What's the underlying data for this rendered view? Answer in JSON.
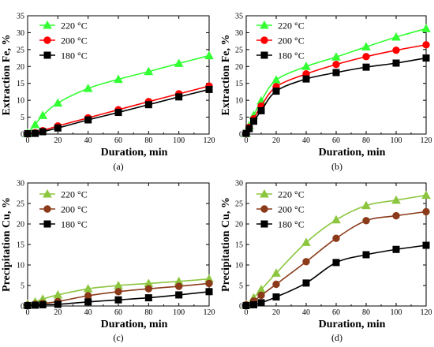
{
  "chart_data": [
    {
      "type": "line",
      "panel_label": "(a)",
      "xlabel": "Duration,  min",
      "ylabel": "Extraction Fe,  %",
      "xlim": [
        0,
        120
      ],
      "ylim": [
        0,
        35
      ],
      "xticks": [
        0,
        20,
        40,
        60,
        80,
        100,
        120
      ],
      "yticks": [
        0,
        5,
        10,
        15,
        20,
        25,
        30,
        35
      ],
      "legend_position": "top-left",
      "series": [
        {
          "name": "220 °C",
          "color": "#33ff33",
          "marker": "triangle",
          "x": [
            0,
            5,
            10,
            20,
            40,
            60,
            80,
            100,
            120
          ],
          "y": [
            0.3,
            2.8,
            5.5,
            9.2,
            13.5,
            16.2,
            18.5,
            20.9,
            23.2
          ]
        },
        {
          "name": "200 °C",
          "color": "#ff0000",
          "marker": "circle",
          "x": [
            0,
            5,
            10,
            20,
            40,
            60,
            80,
            100,
            120
          ],
          "y": [
            0.1,
            0.4,
            1.0,
            2.4,
            4.8,
            7.2,
            9.6,
            11.9,
            14.2
          ]
        },
        {
          "name": "180 °C",
          "color": "#000000",
          "marker": "square",
          "x": [
            0,
            5,
            10,
            20,
            40,
            60,
            80,
            100,
            120
          ],
          "y": [
            0.1,
            0.2,
            0.7,
            1.8,
            4.2,
            6.4,
            8.7,
            11.0,
            13.2
          ]
        }
      ]
    },
    {
      "type": "line",
      "panel_label": "(b)",
      "xlabel": "Duration,  min",
      "ylabel": "Extraction Fe,  %",
      "xlim": [
        0,
        120
      ],
      "ylim": [
        0,
        35
      ],
      "xticks": [
        0,
        20,
        40,
        60,
        80,
        100,
        120
      ],
      "yticks": [
        0,
        5,
        10,
        15,
        20,
        25,
        30,
        35
      ],
      "legend_position": "top-right",
      "series": [
        {
          "name": "220 °C",
          "color": "#33ff33",
          "marker": "triangle",
          "x": [
            0,
            2,
            5,
            10,
            20,
            40,
            60,
            80,
            100,
            120
          ],
          "y": [
            0.2,
            2.5,
            5.5,
            9.8,
            16.0,
            20.0,
            22.8,
            25.8,
            28.7,
            31.2
          ]
        },
        {
          "name": "200 °C",
          "color": "#ff0000",
          "marker": "circle",
          "x": [
            0,
            2,
            5,
            10,
            20,
            40,
            60,
            80,
            100,
            120
          ],
          "y": [
            0.2,
            2.0,
            4.5,
            8.3,
            14.0,
            17.8,
            20.6,
            22.9,
            24.8,
            26.4
          ]
        },
        {
          "name": "180 °C",
          "color": "#000000",
          "marker": "square",
          "x": [
            0,
            2,
            5,
            10,
            20,
            40,
            60,
            80,
            100,
            120
          ],
          "y": [
            0.2,
            1.6,
            3.8,
            6.9,
            12.7,
            16.3,
            18.2,
            19.8,
            21.0,
            22.5
          ]
        }
      ]
    },
    {
      "type": "line",
      "panel_label": "(c)",
      "xlabel": "Duration,  min",
      "ylabel": "Precipitation Cu,  %",
      "xlim": [
        0,
        120
      ],
      "ylim": [
        0,
        30
      ],
      "xticks": [
        0,
        20,
        40,
        60,
        80,
        100,
        120
      ],
      "yticks": [
        0,
        5,
        10,
        15,
        20,
        25,
        30
      ],
      "legend_position": "top-left",
      "series": [
        {
          "name": "220 °C",
          "color": "#8cc63f",
          "marker": "triangle",
          "x": [
            0,
            5,
            10,
            20,
            40,
            60,
            80,
            100,
            120
          ],
          "y": [
            0.5,
            1.0,
            1.7,
            2.7,
            4.2,
            5.0,
            5.5,
            6.0,
            6.6
          ]
        },
        {
          "name": "200 °C",
          "color": "#8b3a1a",
          "marker": "circle",
          "x": [
            0,
            5,
            10,
            20,
            40,
            60,
            80,
            100,
            120
          ],
          "y": [
            0.2,
            0.4,
            0.6,
            1.1,
            2.5,
            3.5,
            4.2,
            4.8,
            5.5
          ]
        },
        {
          "name": "180 °C",
          "color": "#000000",
          "marker": "square",
          "x": [
            0,
            5,
            10,
            20,
            40,
            60,
            80,
            100,
            120
          ],
          "y": [
            0.1,
            0.2,
            0.3,
            0.4,
            1.0,
            1.5,
            2.0,
            2.7,
            3.5
          ]
        }
      ]
    },
    {
      "type": "line",
      "panel_label": "(d)",
      "xlabel": "Duration,  min",
      "ylabel": "Precipitation Cu,  %",
      "xlim": [
        0,
        120
      ],
      "ylim": [
        0,
        30
      ],
      "xticks": [
        0,
        20,
        40,
        60,
        80,
        100,
        120
      ],
      "yticks": [
        0,
        5,
        10,
        15,
        20,
        25,
        30
      ],
      "legend_position": "top-right",
      "series": [
        {
          "name": "220 °C",
          "color": "#8cc63f",
          "marker": "triangle",
          "x": [
            0,
            5,
            10,
            20,
            40,
            60,
            80,
            100,
            120
          ],
          "y": [
            0.3,
            2.0,
            4.0,
            8.0,
            15.5,
            21.0,
            24.5,
            25.8,
            27.0
          ]
        },
        {
          "name": "200 °C",
          "color": "#8b3a1a",
          "marker": "circle",
          "x": [
            0,
            5,
            10,
            20,
            40,
            60,
            80,
            100,
            120
          ],
          "y": [
            0.3,
            1.2,
            2.6,
            5.3,
            10.8,
            16.5,
            20.8,
            22.0,
            23.0
          ]
        },
        {
          "name": "180 °C",
          "color": "#000000",
          "marker": "square",
          "x": [
            0,
            5,
            10,
            20,
            40,
            60,
            80,
            100,
            120
          ],
          "y": [
            0.1,
            0.3,
            0.8,
            2.2,
            5.6,
            10.6,
            12.5,
            13.8,
            14.8
          ]
        }
      ]
    }
  ]
}
